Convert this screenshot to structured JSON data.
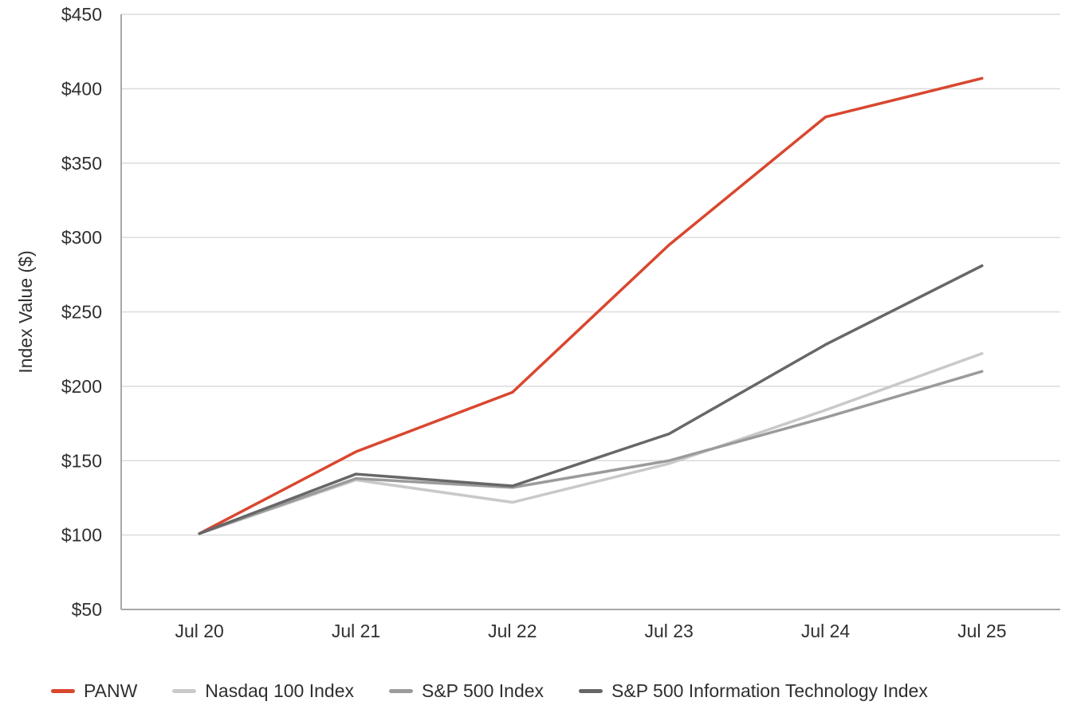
{
  "chart_data": {
    "type": "line",
    "title": "",
    "xlabel": "",
    "ylabel": "Index Value ($)",
    "ylim": [
      50,
      450
    ],
    "ytick_step": 50,
    "ytick_labels": [
      "$50",
      "$100",
      "$150",
      "$200",
      "$250",
      "$300",
      "$350",
      "$400",
      "$450"
    ],
    "categories": [
      "Jul 20",
      "Jul 21",
      "Jul 22",
      "Jul 23",
      "Jul 24",
      "Jul 25"
    ],
    "grid": true,
    "legend_position": "bottom",
    "series": [
      {
        "name": "PANW",
        "color": "#D9472F",
        "values": [
          101,
          156,
          196,
          295,
          381,
          407
        ]
      },
      {
        "name": "Nasdaq 100 Index",
        "color": "#C9C9C9",
        "values": [
          101,
          137,
          122,
          148,
          184,
          222
        ]
      },
      {
        "name": "S&P 500 Index",
        "color": "#9B9B9B",
        "values": [
          101,
          138,
          132,
          150,
          179,
          210
        ]
      },
      {
        "name": "S&P 500 Information Technology Index",
        "color": "#676767",
        "values": [
          101,
          141,
          133,
          168,
          228,
          281
        ]
      }
    ]
  },
  "colors": {
    "grid": "#DBDBDB",
    "axis": "#A8A8A8",
    "text": "#303030"
  }
}
